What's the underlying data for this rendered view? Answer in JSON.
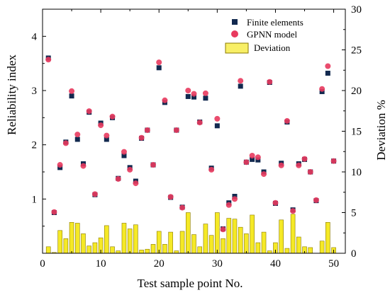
{
  "chart_data": {
    "type": "bar",
    "xlabel": "Test sample point No.",
    "ylabel_left": "Reliability index",
    "ylabel_right": "Deviation %",
    "xlim": [
      0,
      52
    ],
    "ylim_left": [
      0,
      4.5
    ],
    "ylim_right": [
      0,
      30
    ],
    "x_ticks": [
      "0",
      "10",
      "20",
      "30",
      "40",
      "50"
    ],
    "y_left_ticks": [
      "1",
      "2",
      "3",
      "4"
    ],
    "y_right_ticks": [
      "0",
      "5",
      "10",
      "15",
      "20",
      "25",
      "30"
    ],
    "legend_position": "top-right",
    "colors": {
      "finite": "#12294f",
      "gpnn": "#e83a5e",
      "deviation_fill": "#f3e500",
      "deviation_stroke": "#8a7a00"
    },
    "x": [
      1,
      2,
      3,
      4,
      5,
      6,
      7,
      8,
      9,
      10,
      11,
      12,
      13,
      14,
      15,
      16,
      17,
      18,
      19,
      20,
      21,
      22,
      23,
      24,
      25,
      26,
      27,
      28,
      29,
      30,
      31,
      32,
      33,
      34,
      35,
      36,
      37,
      38,
      39,
      40,
      41,
      42,
      43,
      44,
      45,
      46,
      47,
      48,
      49,
      50
    ],
    "series": [
      {
        "name": "Finite elements",
        "values": [
          3.6,
          0.75,
          1.58,
          2.05,
          2.9,
          2.1,
          1.65,
          2.6,
          1.08,
          2.4,
          2.1,
          2.5,
          1.38,
          1.8,
          1.58,
          1.33,
          2.12,
          2.27,
          1.63,
          3.42,
          2.78,
          1.03,
          2.27,
          0.85,
          2.89,
          2.88,
          2.42,
          2.86,
          1.57,
          2.35,
          0.45,
          0.93,
          1.05,
          3.08,
          1.68,
          1.73,
          1.72,
          1.5,
          3.15,
          0.92,
          1.66,
          2.42,
          0.8,
          1.65,
          1.73,
          1.5,
          0.97,
          2.98,
          3.32,
          1.7
        ]
      },
      {
        "name": "GPNN model",
        "values": [
          3.57,
          0.76,
          1.63,
          2.03,
          2.99,
          2.19,
          1.61,
          2.62,
          1.09,
          2.36,
          2.17,
          2.52,
          1.37,
          1.87,
          1.54,
          1.29,
          2.13,
          2.27,
          1.63,
          3.52,
          2.82,
          1.04,
          2.27,
          0.84,
          3.0,
          2.94,
          2.41,
          2.95,
          1.54,
          2.48,
          0.44,
          0.89,
          1.0,
          3.18,
          1.68,
          1.8,
          1.77,
          1.46,
          3.16,
          0.93,
          1.62,
          2.44,
          0.78,
          1.62,
          1.74,
          1.5,
          0.98,
          3.03,
          3.45,
          1.7
        ]
      },
      {
        "name": "Deviation",
        "values": [
          0.8,
          0.1,
          2.8,
          1.8,
          3.8,
          3.7,
          2.4,
          0.9,
          1.3,
          1.9,
          3.4,
          0.8,
          0.3,
          3.7,
          3.0,
          3.5,
          0.4,
          0.5,
          1.1,
          2.7,
          1.1,
          2.6,
          0.3,
          2.7,
          5.0,
          2.3,
          0.8,
          3.6,
          2.2,
          5.0,
          1.8,
          4.3,
          4.2,
          3.2,
          2.4,
          4.7,
          1.3,
          2.6,
          0.3,
          1.3,
          4.1,
          0.6,
          4.8,
          2.0,
          0.8,
          0.7,
          0.0,
          1.5,
          3.8,
          0.7
        ]
      }
    ]
  }
}
